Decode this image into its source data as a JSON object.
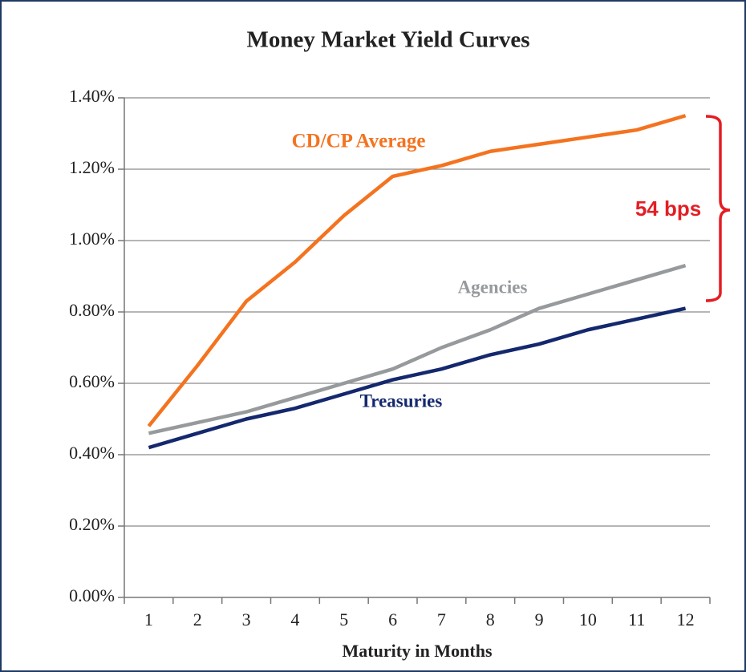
{
  "chart_data": {
    "type": "line",
    "title": "Money Market Yield Curves",
    "x_label": "Maturity in Months",
    "categories": [
      "1",
      "2",
      "3",
      "4",
      "5",
      "6",
      "7",
      "8",
      "9",
      "10",
      "11",
      "12"
    ],
    "series": [
      {
        "name": "CD/CP Average",
        "color": "#f4731f",
        "values": [
          0.48,
          0.65,
          0.83,
          0.94,
          1.07,
          1.18,
          1.21,
          1.25,
          1.27,
          1.29,
          1.31,
          1.35
        ]
      },
      {
        "name": "Agencies",
        "color": "#979a9c",
        "values": [
          0.46,
          0.49,
          0.52,
          0.56,
          0.6,
          0.64,
          0.7,
          0.75,
          0.81,
          0.85,
          0.89,
          0.93
        ]
      },
      {
        "name": "Treasuries",
        "color": "#14286e",
        "values": [
          0.42,
          0.46,
          0.5,
          0.53,
          0.57,
          0.61,
          0.64,
          0.68,
          0.71,
          0.75,
          0.78,
          0.81
        ]
      }
    ],
    "ylim": [
      0,
      1.4
    ],
    "yticks": [
      {
        "value": 0,
        "label": "0.00%"
      },
      {
        "value": 0.2,
        "label": "0.20%"
      },
      {
        "value": 0.4,
        "label": "0.40%"
      },
      {
        "value": 0.6,
        "label": "0.60%"
      },
      {
        "value": 0.8,
        "label": "0.80%"
      },
      {
        "value": 1.0,
        "label": "1.00%"
      },
      {
        "value": 1.2,
        "label": "1.20%"
      },
      {
        "value": 1.4,
        "label": "1.40%"
      }
    ],
    "grid": true,
    "annotation": "54 bps"
  }
}
